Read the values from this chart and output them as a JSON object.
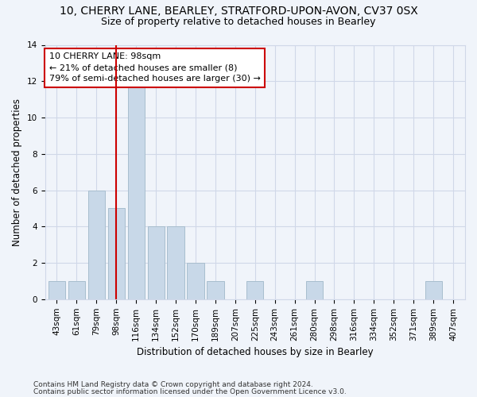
{
  "title_line1": "10, CHERRY LANE, BEARLEY, STRATFORD-UPON-AVON, CV37 0SX",
  "title_line2": "Size of property relative to detached houses in Bearley",
  "xlabel": "Distribution of detached houses by size in Bearley",
  "ylabel": "Number of detached properties",
  "categories": [
    "43sqm",
    "61sqm",
    "79sqm",
    "98sqm",
    "116sqm",
    "134sqm",
    "152sqm",
    "170sqm",
    "189sqm",
    "207sqm",
    "225sqm",
    "243sqm",
    "261sqm",
    "280sqm",
    "298sqm",
    "316sqm",
    "334sqm",
    "352sqm",
    "371sqm",
    "389sqm",
    "407sqm"
  ],
  "values": [
    1,
    1,
    6,
    5,
    12,
    4,
    4,
    2,
    1,
    0,
    1,
    0,
    0,
    1,
    0,
    0,
    0,
    0,
    0,
    1,
    0
  ],
  "bar_color": "#c8d8e8",
  "bar_edge_color": "#a8bece",
  "vline_color": "#cc0000",
  "vline_x_index": 3,
  "annotation_text_line1": "10 CHERRY LANE: 98sqm",
  "annotation_text_line2": "← 21% of detached houses are smaller (8)",
  "annotation_text_line3": "79% of semi-detached houses are larger (30) →",
  "annotation_box_color": "#ffffff",
  "annotation_box_edge": "#cc0000",
  "ylim": [
    0,
    14
  ],
  "yticks": [
    0,
    2,
    4,
    6,
    8,
    10,
    12,
    14
  ],
  "grid_color": "#d0d8e8",
  "footer_line1": "Contains HM Land Registry data © Crown copyright and database right 2024.",
  "footer_line2": "Contains public sector information licensed under the Open Government Licence v3.0.",
  "title_fontsize": 10,
  "subtitle_fontsize": 9,
  "axis_label_fontsize": 8.5,
  "tick_fontsize": 7.5,
  "annotation_fontsize": 8,
  "footer_fontsize": 6.5,
  "background_color": "#f0f4fa"
}
